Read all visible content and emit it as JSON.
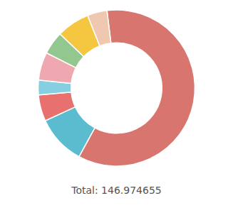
{
  "chart_data": {
    "type": "donut",
    "values": [
      88.0,
      15.0,
      8.0,
      4.5,
      8.5,
      7.0,
      10.0,
      5.974655
    ],
    "colors": [
      "#d9756f",
      "#5bbcd0",
      "#e8706e",
      "#85cfe0",
      "#f0a8b0",
      "#92c890",
      "#f5c740",
      "#f0c8b0"
    ],
    "annotations": [
      "Total: 146.974655"
    ]
  }
}
